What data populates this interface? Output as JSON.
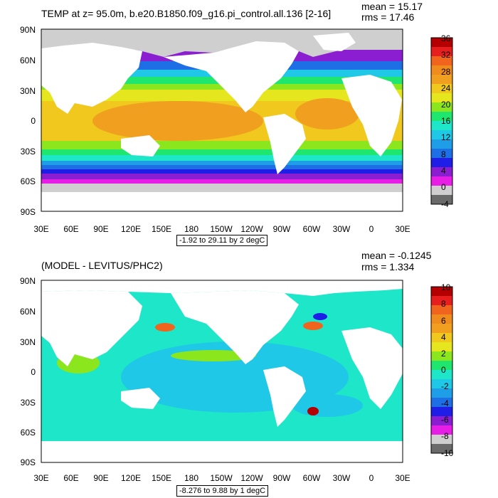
{
  "colors": {
    "land": "#ffffff",
    "sea_ice": "#cccccc",
    "palette": [
      "#6a6a6a",
      "#cfcfcf",
      "#e61ee6",
      "#8c1ed2",
      "#1e1ee6",
      "#1e6ee6",
      "#1e9ee6",
      "#1ec8e6",
      "#1ee6c8",
      "#1ee66e",
      "#8ce61e",
      "#e6e61e",
      "#f0c81e",
      "#f0a01e",
      "#f08c1e",
      "#f0641e",
      "#e61e1e",
      "#b40000"
    ]
  },
  "panels": [
    {
      "title": "TEMP at z=  95.0m, b.e20.B1850.f09_g16.pi_control.all.136 [2-16]",
      "mean": "mean = 15.17",
      "rms": "rms = 17.46",
      "range": "-1.92 to 29.11 by 2 degC",
      "lat_labels": [
        "90N",
        "60N",
        "30N",
        "0",
        "30S",
        "60S",
        "90S"
      ],
      "lon_labels": [
        "30E",
        "60E",
        "90E",
        "120E",
        "150E",
        "180",
        "150W",
        "120W",
        "90W",
        "60W",
        "30W",
        "0",
        "30E"
      ],
      "colorbar": [
        "36",
        "32",
        "28",
        "24",
        "20",
        "16",
        "12",
        "8",
        "4",
        "0",
        "-4"
      ]
    },
    {
      "title": "(MODEL - LEVITUS/PHC2)",
      "mean": "mean = -0.1245",
      "rms": "rms = 1.334",
      "range": "-8.276 to 9.88 by 1 degC",
      "lat_labels": [
        "90N",
        "60N",
        "30N",
        "0",
        "30S",
        "60S",
        "90S"
      ],
      "lon_labels": [
        "30E",
        "60E",
        "90E",
        "120E",
        "150E",
        "180",
        "150W",
        "120W",
        "90W",
        "60W",
        "30W",
        "0",
        "30E"
      ],
      "colorbar": [
        "10",
        "8",
        "6",
        "4",
        "2",
        "0",
        "-2",
        "-4",
        "-6",
        "-8",
        "-10"
      ]
    }
  ]
}
